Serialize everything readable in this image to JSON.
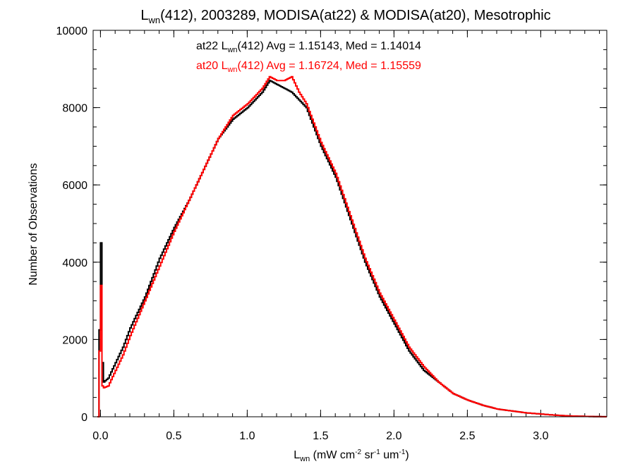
{
  "chart_data": {
    "type": "line",
    "title": {
      "pre": "L",
      "sub": "wn",
      "post": "(412), 2003289, MODISA(at22) & MODISA(at20), Mesotrophic"
    },
    "xlabel": {
      "pre": "L",
      "sub": "wn",
      "p1": " (mW cm",
      "s1": "-2",
      "p2": " sr",
      "s2": "-1",
      "p3": " um",
      "s3": "-1",
      "p4": ")"
    },
    "ylabel": "Number of Observations",
    "xlim": [
      -0.05,
      3.45
    ],
    "ylim": [
      0,
      10000
    ],
    "x_ticks": [
      "0.0",
      "0.5",
      "1.0",
      "1.5",
      "2.0",
      "2.5",
      "3.0"
    ],
    "y_ticks": [
      "0",
      "2000",
      "4000",
      "6000",
      "8000",
      "10000"
    ],
    "annotations": [
      {
        "pre": "at22 L",
        "sub": "wn",
        "post": "(412) Avg = 1.15143, Med = 1.14014",
        "color": "#000000"
      },
      {
        "pre": "at20 L",
        "sub": "wn",
        "post": "(412) Avg = 1.16724, Med = 1.15559",
        "color": "#ff0000"
      }
    ],
    "series": [
      {
        "color": "#000000",
        "x": [
          -0.02,
          0.0,
          0.01,
          0.02,
          0.05,
          0.1,
          0.15,
          0.2,
          0.3,
          0.4,
          0.5,
          0.6,
          0.7,
          0.8,
          0.9,
          1.0,
          1.05,
          1.1,
          1.15,
          1.2,
          1.25,
          1.3,
          1.35,
          1.4,
          1.5,
          1.6,
          1.7,
          1.8,
          1.9,
          2.0,
          2.1,
          2.2,
          2.3,
          2.4,
          2.5,
          2.6,
          2.7,
          2.8,
          2.9,
          3.0,
          3.1,
          3.2,
          3.3,
          3.45
        ],
        "y": [
          0,
          4500,
          1400,
          900,
          1000,
          1400,
          1800,
          2300,
          3100,
          4100,
          4900,
          5600,
          6400,
          7200,
          7700,
          8000,
          8200,
          8400,
          8700,
          8600,
          8500,
          8400,
          8200,
          8000,
          7000,
          6200,
          5100,
          4000,
          3100,
          2400,
          1700,
          1200,
          900,
          600,
          430,
          300,
          200,
          150,
          100,
          70,
          40,
          20,
          10,
          0
        ]
      },
      {
        "color": "#ff0000",
        "x": [
          -0.02,
          0.0,
          0.01,
          0.02,
          0.05,
          0.1,
          0.15,
          0.2,
          0.3,
          0.4,
          0.5,
          0.6,
          0.7,
          0.8,
          0.9,
          1.0,
          1.05,
          1.1,
          1.15,
          1.2,
          1.25,
          1.3,
          1.35,
          1.4,
          1.5,
          1.6,
          1.7,
          1.8,
          1.9,
          2.0,
          2.1,
          2.2,
          2.3,
          2.4,
          2.5,
          2.6,
          2.7,
          2.8,
          2.9,
          3.0,
          3.1,
          3.2,
          3.3,
          3.45
        ],
        "y": [
          0,
          3400,
          800,
          750,
          800,
          1200,
          1600,
          2100,
          3000,
          3900,
          4800,
          5600,
          6400,
          7200,
          7800,
          8100,
          8300,
          8500,
          8800,
          8700,
          8700,
          8800,
          8400,
          8100,
          7100,
          6300,
          5200,
          4100,
          3200,
          2500,
          1800,
          1300,
          900,
          600,
          430,
          300,
          200,
          150,
          100,
          70,
          40,
          20,
          10,
          0
        ]
      }
    ]
  }
}
